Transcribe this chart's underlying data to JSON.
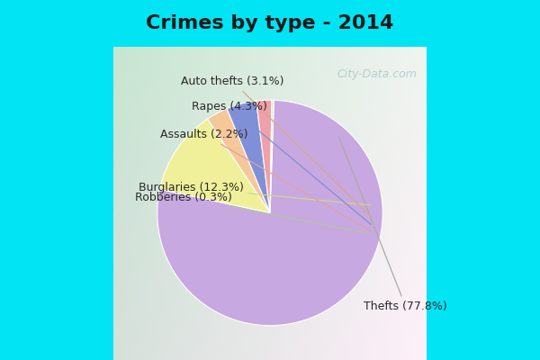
{
  "title": "Crimes by type - 2014",
  "labels": [
    "Thefts",
    "Burglaries",
    "Auto thefts",
    "Rapes",
    "Assaults",
    "Robberies"
  ],
  "values": [
    77.8,
    12.3,
    3.1,
    4.3,
    2.2,
    0.3
  ],
  "colors": [
    "#c8a8e0",
    "#f0f09a",
    "#f5c89a",
    "#8090d8",
    "#f0a0a8",
    "#d0e8c0"
  ],
  "background_top": "#00e4f4",
  "background_inner": "#e8f5f0",
  "title_fontsize": 16,
  "label_fontsize": 9,
  "watermark": "City-Data.com",
  "startangle": 88
}
